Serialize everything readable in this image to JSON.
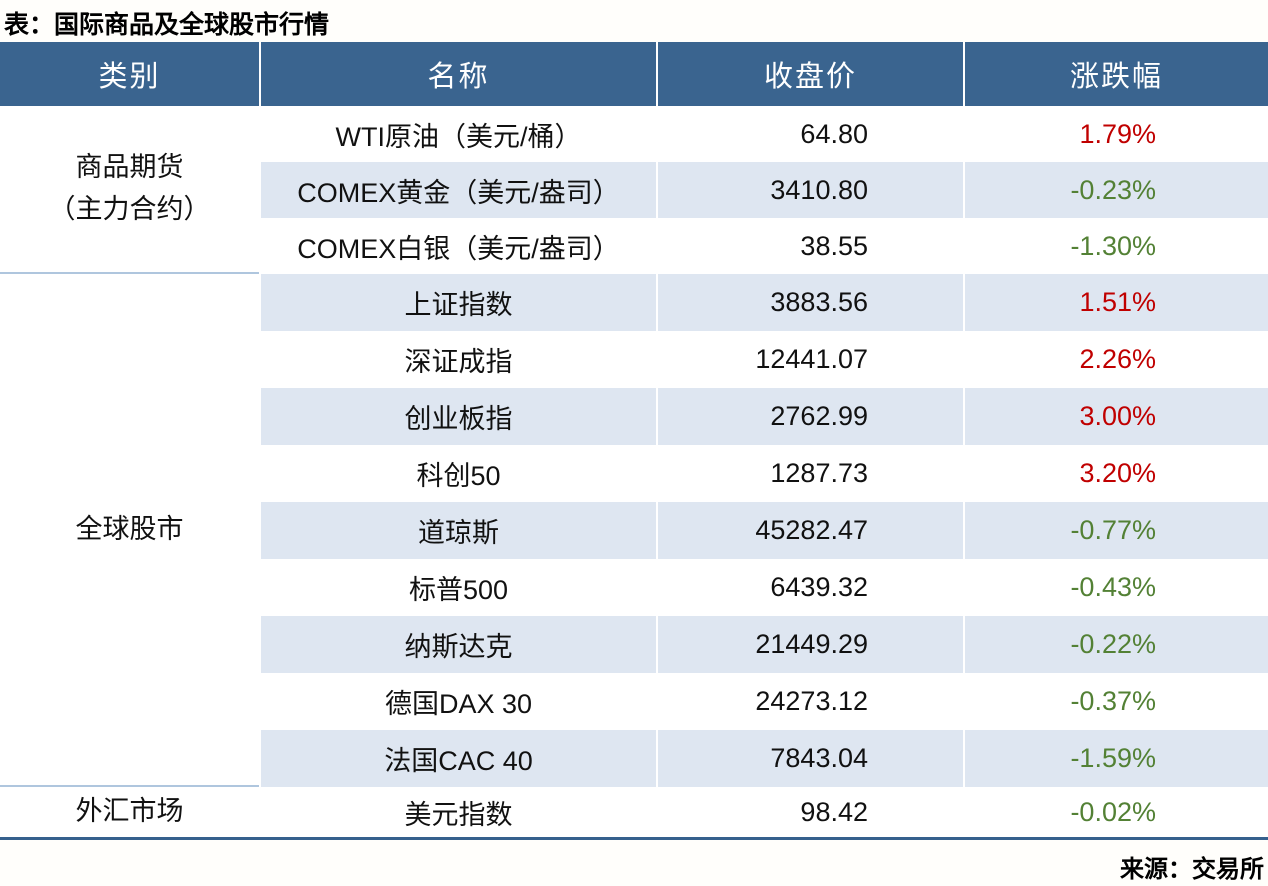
{
  "title": "表：国际商品及全球股市行情",
  "source": "来源：交易所",
  "colors": {
    "header_bg": "#3A648F",
    "band_row_bg": "#DEE6F1",
    "up_red": "#C00000",
    "down_green": "#538135",
    "bottom_rule": "#35608D",
    "section_divider": "#AFC6DE"
  },
  "table": {
    "headers": [
      "类别",
      "名称",
      "收盘价",
      "涨跌幅"
    ],
    "sections": [
      {
        "category_lines": [
          "商品期货",
          "（主力合约）"
        ],
        "rows": [
          {
            "name": "WTI原油（美元/桶）",
            "close": "64.80",
            "change": "1.79%",
            "dir": "up"
          },
          {
            "name": "COMEX黄金（美元/盎司）",
            "close": "3410.80",
            "change": "-0.23%",
            "dir": "down"
          },
          {
            "name": "COMEX白银（美元/盎司）",
            "close": "38.55",
            "change": "-1.30%",
            "dir": "down"
          }
        ]
      },
      {
        "category_lines": [
          "全球股市"
        ],
        "rows": [
          {
            "name": "上证指数",
            "close": "3883.56",
            "change": "1.51%",
            "dir": "up"
          },
          {
            "name": "深证成指",
            "close": "12441.07",
            "change": "2.26%",
            "dir": "up"
          },
          {
            "name": "创业板指",
            "close": "2762.99",
            "change": "3.00%",
            "dir": "up"
          },
          {
            "name": "科创50",
            "close": "1287.73",
            "change": "3.20%",
            "dir": "up"
          },
          {
            "name": "道琼斯",
            "close": "45282.47",
            "change": "-0.77%",
            "dir": "down"
          },
          {
            "name": "标普500",
            "close": "6439.32",
            "change": "-0.43%",
            "dir": "down"
          },
          {
            "name": "纳斯达克",
            "close": "21449.29",
            "change": "-0.22%",
            "dir": "down"
          },
          {
            "name": "德国DAX 30",
            "close": "24273.12",
            "change": "-0.37%",
            "dir": "down"
          },
          {
            "name": "法国CAC 40",
            "close": "7843.04",
            "change": "-1.59%",
            "dir": "down"
          }
        ]
      },
      {
        "category_lines": [
          "外汇市场"
        ],
        "rows": [
          {
            "name": "美元指数",
            "close": "98.42",
            "change": "-0.02%",
            "dir": "down"
          }
        ]
      }
    ]
  },
  "chart_data": {
    "type": "table",
    "title": "表：国际商品及全球股市行情",
    "source": "来源：交易所",
    "columns": [
      "类别",
      "名称",
      "收盘价",
      "涨跌幅"
    ],
    "rows": [
      [
        "商品期货（主力合约）",
        "WTI原油（美元/桶）",
        64.8,
        "1.79%"
      ],
      [
        "商品期货（主力合约）",
        "COMEX黄金（美元/盎司）",
        3410.8,
        "-0.23%"
      ],
      [
        "商品期货（主力合约）",
        "COMEX白银（美元/盎司）",
        38.55,
        "-1.30%"
      ],
      [
        "全球股市",
        "上证指数",
        3883.56,
        "1.51%"
      ],
      [
        "全球股市",
        "深证成指",
        12441.07,
        "2.26%"
      ],
      [
        "全球股市",
        "创业板指",
        2762.99,
        "3.00%"
      ],
      [
        "全球股市",
        "科创50",
        1287.73,
        "3.20%"
      ],
      [
        "全球股市",
        "道琼斯",
        45282.47,
        "-0.77%"
      ],
      [
        "全球股市",
        "标普500",
        6439.32,
        "-0.43%"
      ],
      [
        "全球股市",
        "纳斯达克",
        21449.29,
        "-0.22%"
      ],
      [
        "全球股市",
        "德国DAX 30",
        24273.12,
        "-0.37%"
      ],
      [
        "全球股市",
        "法国CAC 40",
        7843.04,
        "-1.59%"
      ],
      [
        "外汇市场",
        "美元指数",
        98.42,
        "-0.02%"
      ]
    ]
  }
}
